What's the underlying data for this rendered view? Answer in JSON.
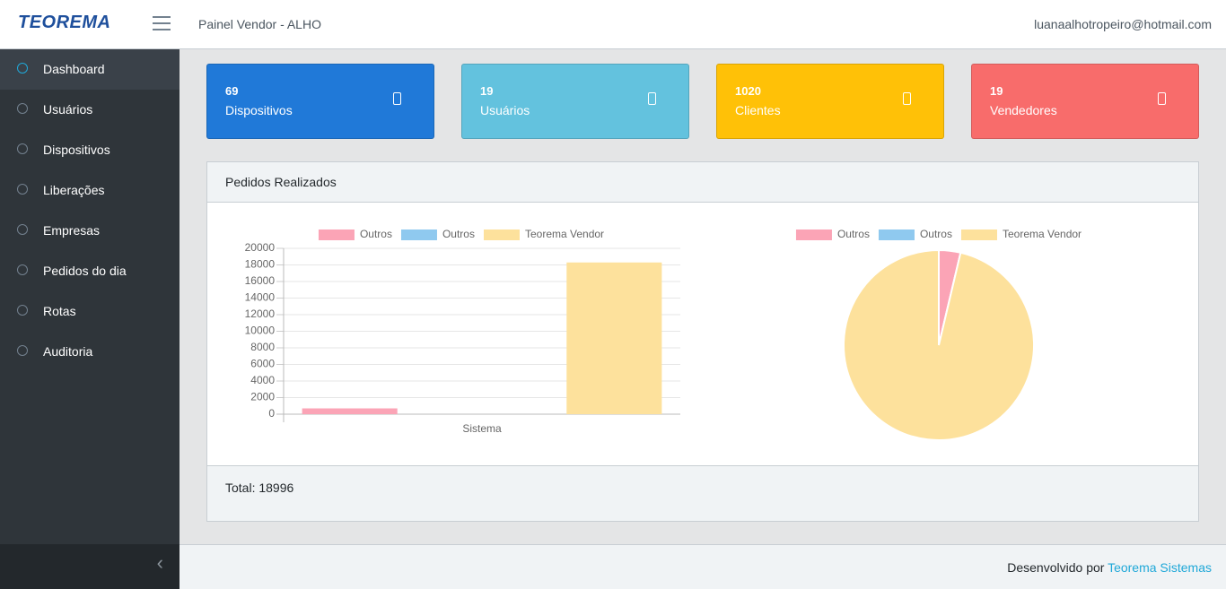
{
  "header": {
    "brand": "TEOREMA",
    "title": "Painel Vendor - ALHO",
    "user": "luanaalhotropeiro@hotmail.com"
  },
  "sidebar": {
    "items": [
      "Dashboard",
      "Usuários",
      "Dispositivos",
      "Liberações",
      "Empresas",
      "Pedidos do dia",
      "Rotas",
      "Auditoria"
    ]
  },
  "cards": [
    {
      "value": 69,
      "label": "Dispositivos",
      "color": "#2079d8"
    },
    {
      "value": 19,
      "label": "Usuários",
      "color": "#63c2de"
    },
    {
      "value": 1020,
      "label": "Clientes",
      "color": "#ffc107"
    },
    {
      "value": 19,
      "label": "Vendedores",
      "color": "#f86c6b"
    }
  ],
  "panel": {
    "title": "Pedidos Realizados",
    "total_label": "Total:",
    "total": 18996
  },
  "chart_data": [
    {
      "type": "bar",
      "categories": [
        "Sistema"
      ],
      "series": [
        {
          "name": "Outros",
          "color": "#fba4b6",
          "values": [
            700
          ]
        },
        {
          "name": "Outros",
          "color": "#8fc9ef",
          "values": [
            0
          ]
        },
        {
          "name": "Teorema Vendor",
          "color": "#fde19c",
          "values": [
            18296
          ]
        }
      ],
      "ylim": [
        0,
        20000
      ],
      "yticks": [
        0,
        2000,
        4000,
        6000,
        8000,
        10000,
        12000,
        14000,
        16000,
        18000,
        20000
      ],
      "grid": true
    },
    {
      "type": "pie",
      "labels": [
        "Outros",
        "Outros",
        "Teorema Vendor"
      ],
      "values": [
        700,
        0,
        18296
      ],
      "colors": [
        "#fba4b6",
        "#8fc9ef",
        "#fde19c"
      ]
    }
  ],
  "footer": {
    "text": "Desenvolvido por",
    "link": "Teorema Sistemas"
  }
}
